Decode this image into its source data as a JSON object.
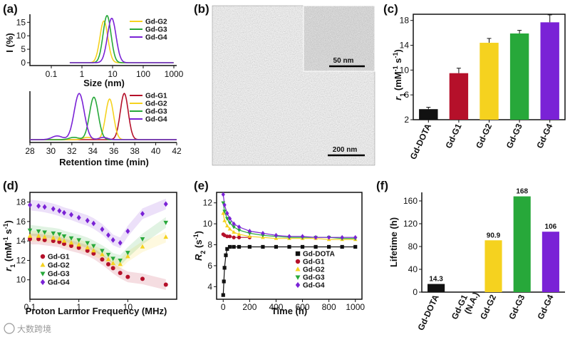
{
  "colors": {
    "DOTA": "#111111",
    "G1": "#b5102a",
    "G2": "#f5d21f",
    "G3": "#27a83a",
    "G4": "#7a22d6"
  },
  "watermark": "大数跨境",
  "chart_data": [
    {
      "id": "a_top",
      "panel": "(a)",
      "type": "line",
      "xscale": "log",
      "xlabel": "Size (nm)",
      "ylabel": "I (%)",
      "xlim": [
        0.1,
        1000
      ],
      "ylim": [
        0,
        18
      ],
      "xticks": [
        "0.1",
        "1",
        "10",
        "100",
        "1000"
      ],
      "yticks": [
        0,
        5,
        10,
        15
      ],
      "series": [
        {
          "name": "Gd-G2",
          "color_key": "G2",
          "peak": 5.2,
          "width": 0.13,
          "height": 15.5
        },
        {
          "name": "Gd-G3",
          "color_key": "G3",
          "peak": 6.6,
          "width": 0.13,
          "height": 17.5
        },
        {
          "name": "Gd-G4",
          "color_key": "G4",
          "peak": 9.4,
          "width": 0.14,
          "height": 16.5
        }
      ]
    },
    {
      "id": "a_bottom",
      "type": "line",
      "xlabel": "Retention time (min)",
      "xlim": [
        28,
        42
      ],
      "xticks": [
        28,
        30,
        32,
        34,
        36,
        38,
        40,
        42
      ],
      "series": [
        {
          "name": "Gd-G1",
          "color_key": "G1",
          "peak": 37.0,
          "width": 0.38,
          "height": 1.0
        },
        {
          "name": "Gd-G2",
          "color_key": "G2",
          "peak": 35.6,
          "width": 0.38,
          "height": 0.88
        },
        {
          "name": "Gd-G3",
          "color_key": "G3",
          "peak": 34.1,
          "width": 0.42,
          "height": 0.92
        },
        {
          "name": "Gd-G4",
          "color_key": "G4",
          "peak": 32.7,
          "width": 0.48,
          "height": 1.0
        }
      ]
    },
    {
      "id": "c",
      "panel": "(c)",
      "type": "bar",
      "ylabel": "r1 (mM-1 s-1)",
      "ylim": [
        2,
        19
      ],
      "yticks": [
        2,
        6,
        10,
        14,
        18
      ],
      "categories": [
        "Gd-DOTA",
        "Gd-G1",
        "Gd-G2",
        "Gd-G3",
        "Gd-G4"
      ],
      "values": [
        3.7,
        9.5,
        14.4,
        15.9,
        17.7
      ],
      "errors": [
        0.3,
        0.8,
        0.7,
        0.5,
        1.2
      ],
      "color_keys": [
        "DOTA",
        "G1",
        "G2",
        "G3",
        "G4"
      ]
    },
    {
      "id": "d",
      "panel": "(d)",
      "type": "scatter",
      "xscale": "log",
      "xlabel": "Proton Larmor Frequency (MHz)",
      "ylabel": "r1 (mM-1 s-1)",
      "xlim": [
        0.1,
        100
      ],
      "ylim": [
        8,
        19
      ],
      "xticks": [
        "0.1",
        "1",
        "10"
      ],
      "yticks": [
        10,
        12,
        14,
        16,
        18
      ],
      "series": [
        {
          "name": "Gd-G1",
          "color_key": "G1",
          "marker": "circle",
          "x": [
            0.1,
            0.15,
            0.2,
            0.3,
            0.4,
            0.5,
            0.7,
            1.0,
            1.5,
            2.0,
            3.0,
            4.0,
            5.0,
            7.0,
            10,
            20,
            60
          ],
          "y": [
            14.2,
            14.2,
            14.1,
            14.0,
            13.9,
            13.7,
            13.5,
            13.3,
            13.0,
            12.7,
            12.1,
            11.6,
            11.2,
            10.7,
            10.3,
            10.1,
            9.5
          ]
        },
        {
          "name": "Gd-G2",
          "color_key": "G2",
          "marker": "triangle-up",
          "x": [
            0.1,
            0.15,
            0.2,
            0.3,
            0.4,
            0.5,
            0.7,
            1.0,
            1.5,
            2.0,
            3.0,
            4.0,
            5.0,
            7.0,
            10,
            20,
            60
          ],
          "y": [
            14.5,
            14.5,
            14.4,
            14.3,
            14.2,
            14.0,
            13.8,
            13.6,
            13.3,
            13.0,
            12.6,
            12.1,
            11.7,
            11.6,
            12.4,
            13.4,
            14.4
          ]
        },
        {
          "name": "Gd-G3",
          "color_key": "G3",
          "marker": "triangle-down",
          "x": [
            0.1,
            0.15,
            0.2,
            0.3,
            0.4,
            0.5,
            0.7,
            1.0,
            1.5,
            2.0,
            3.0,
            4.0,
            5.0,
            7.0,
            10,
            20,
            60
          ],
          "y": [
            15.1,
            15.0,
            14.9,
            14.8,
            14.7,
            14.5,
            14.3,
            14.1,
            13.8,
            13.5,
            13.0,
            12.6,
            12.2,
            12.0,
            12.8,
            14.2,
            15.9
          ]
        },
        {
          "name": "Gd-G4",
          "color_key": "G4",
          "marker": "diamond",
          "x": [
            0.1,
            0.15,
            0.2,
            0.3,
            0.4,
            0.5,
            0.7,
            1.0,
            1.5,
            2.0,
            3.0,
            4.0,
            5.0,
            7.0,
            10,
            20,
            60
          ],
          "y": [
            17.7,
            17.6,
            17.5,
            17.3,
            17.1,
            16.9,
            16.7,
            16.4,
            16.1,
            15.8,
            15.2,
            14.6,
            14.1,
            13.8,
            15.0,
            16.8,
            17.8
          ]
        }
      ]
    },
    {
      "id": "e",
      "panel": "(e)",
      "type": "scatter",
      "xlabel": "Time (h)",
      "ylabel": "R2 (s-1)",
      "xlim": [
        -50,
        1050
      ],
      "ylim": [
        2.8,
        13
      ],
      "xticks": [
        0,
        200,
        400,
        600,
        800,
        1000
      ],
      "yticks": [
        4,
        6,
        8,
        10,
        12
      ],
      "series": [
        {
          "name": "Gd-DOTA",
          "color_key": "DOTA",
          "marker": "square",
          "x": [
            0,
            5,
            10,
            20,
            30,
            50,
            80,
            120,
            200,
            300,
            400,
            500,
            600,
            700,
            800,
            900,
            1000
          ],
          "y": [
            3.2,
            4.5,
            5.8,
            7.0,
            7.6,
            7.8,
            7.8,
            7.8,
            7.8,
            7.8,
            7.8,
            7.8,
            7.8,
            7.8,
            7.8,
            7.8,
            7.8
          ]
        },
        {
          "name": "Gd-G1",
          "color_key": "G1",
          "marker": "circle",
          "x": [
            0,
            10,
            30,
            50,
            80,
            120,
            200
          ],
          "y": [
            9.0,
            8.9,
            8.8,
            8.8,
            8.7,
            8.7,
            8.7
          ]
        },
        {
          "name": "Gd-G2",
          "color_key": "G2",
          "marker": "triangle-up",
          "x": [
            0,
            10,
            30,
            50,
            80,
            120,
            200,
            300,
            400,
            500,
            600,
            700,
            800,
            900,
            1000
          ],
          "y": [
            11.0,
            10.3,
            9.8,
            9.5,
            9.2,
            9.0,
            8.8,
            8.7,
            8.6,
            8.6,
            8.6,
            8.6,
            8.5,
            8.5,
            8.5
          ]
        },
        {
          "name": "Gd-G3",
          "color_key": "G3",
          "marker": "triangle-down",
          "x": [
            0,
            10,
            30,
            50,
            80,
            120,
            200,
            300,
            400,
            500,
            600,
            700,
            800,
            900,
            1000
          ],
          "y": [
            12.0,
            11.2,
            10.5,
            10.1,
            9.7,
            9.4,
            9.1,
            8.9,
            8.8,
            8.7,
            8.7,
            8.7,
            8.7,
            8.6,
            8.6
          ]
        },
        {
          "name": "Gd-G4",
          "color_key": "G4",
          "marker": "diamond",
          "x": [
            0,
            10,
            30,
            50,
            80,
            120,
            200,
            300,
            400,
            500,
            600,
            700,
            800,
            900,
            1000
          ],
          "y": [
            12.8,
            11.8,
            11.0,
            10.5,
            10.0,
            9.7,
            9.3,
            9.1,
            8.9,
            8.8,
            8.8,
            8.7,
            8.7,
            8.7,
            8.7
          ]
        }
      ]
    },
    {
      "id": "f",
      "panel": "(f)",
      "type": "bar",
      "ylabel": "Lifetime (h)",
      "ylim": [
        0,
        175
      ],
      "yticks": [
        0,
        40,
        80,
        120,
        160
      ],
      "categories": [
        "Gd-DOTA",
        "Gd-G1 (N.A.)",
        "Gd-G2",
        "Gd-G3",
        "Gd-G4"
      ],
      "values": [
        14.3,
        0,
        90.9,
        168,
        106
      ],
      "value_labels": [
        "14.3",
        "",
        "90.9",
        "168",
        "106"
      ],
      "color_keys": [
        "DOTA",
        "G1",
        "G2",
        "G3",
        "G4"
      ]
    }
  ],
  "panel_b": {
    "panel": "(b)",
    "inset_scale": "50 nm",
    "main_scale": "200 nm"
  }
}
